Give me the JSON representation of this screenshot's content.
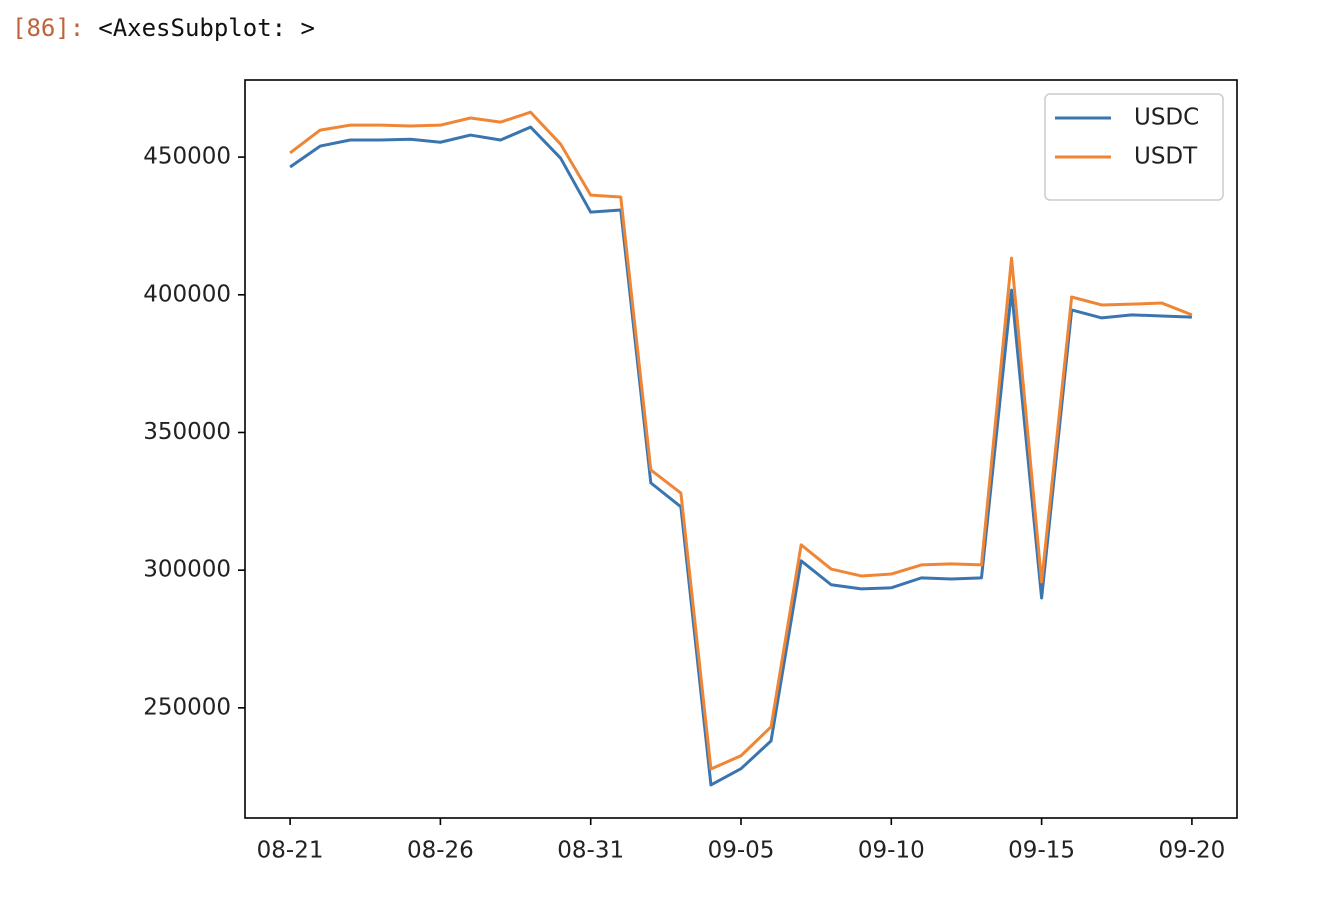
{
  "cell": {
    "prompt": "[86]:",
    "output": "<AxesSubplot: >"
  },
  "chart_data": {
    "type": "line",
    "categories": [
      "08-21",
      null,
      null,
      null,
      null,
      "08-26",
      null,
      null,
      null,
      null,
      "08-31",
      null,
      null,
      null,
      null,
      "09-05",
      null,
      null,
      null,
      null,
      "09-10",
      null,
      null,
      null,
      null,
      "09-15",
      null,
      null,
      null,
      null,
      "09-20"
    ],
    "series": [
      {
        "name": "USDC",
        "color": "#3b75af",
        "values": [
          446400,
          454000,
          456200,
          456200,
          456500,
          455400,
          458000,
          456200,
          460900,
          449600,
          430000,
          430800,
          331700,
          323000,
          222000,
          227900,
          238000,
          303400,
          294700,
          293200,
          293600,
          297200,
          296800,
          297200,
          401700,
          289900,
          394500,
          391600,
          392700,
          392300,
          391900
        ]
      },
      {
        "name": "USDT",
        "color": "#ef8636",
        "values": [
          451500,
          459800,
          461600,
          461600,
          461300,
          461600,
          464200,
          462700,
          466300,
          454700,
          436200,
          435500,
          336400,
          328000,
          227800,
          232600,
          243100,
          309200,
          300400,
          297900,
          298600,
          301900,
          302300,
          301900,
          413300,
          295700,
          399200,
          396300,
          396600,
          397000,
          392700
        ]
      }
    ],
    "ylim": [
      210000,
      478000
    ],
    "yticks": [
      250000,
      300000,
      350000,
      400000,
      450000
    ],
    "legend": "upper right",
    "grid": false
  }
}
